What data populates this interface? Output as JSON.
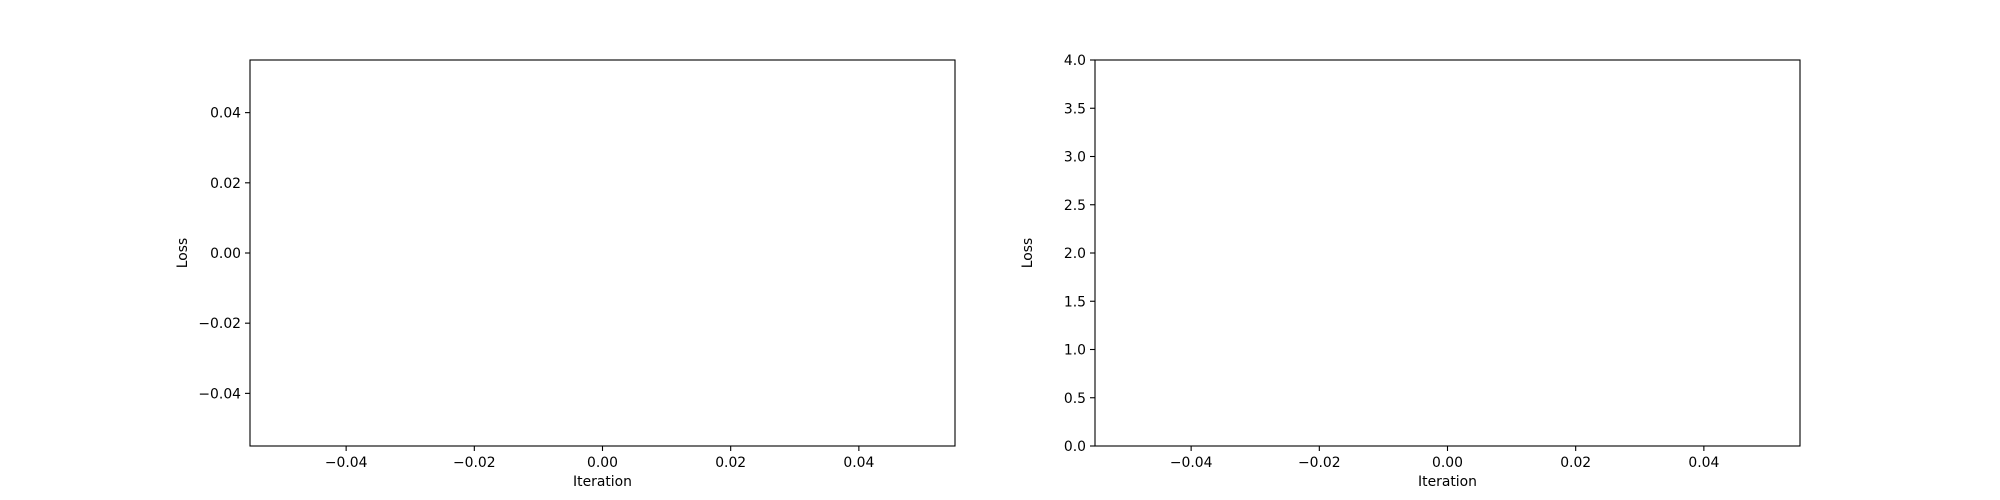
{
  "chart_data": [
    {
      "type": "line",
      "title": "",
      "xlabel": "Iteration",
      "ylabel": "Loss",
      "xlim": [
        -0.055,
        0.055
      ],
      "ylim": [
        -0.055,
        0.055
      ],
      "xticks": [
        -0.04,
        -0.02,
        0.0,
        0.02,
        0.04
      ],
      "xtick_labels": [
        "−0.04",
        "−0.02",
        "0.00",
        "0.02",
        "0.04"
      ],
      "yticks": [
        -0.04,
        -0.02,
        0.0,
        0.02,
        0.04
      ],
      "ytick_labels": [
        "−0.04",
        "−0.02",
        "0.00",
        "0.02",
        "0.04"
      ],
      "grid": false,
      "series": []
    },
    {
      "type": "line",
      "title": "",
      "xlabel": "Iteration",
      "ylabel": "Loss",
      "xlim": [
        -0.055,
        0.055
      ],
      "ylim": [
        0.0,
        4.0
      ],
      "xticks": [
        -0.04,
        -0.02,
        0.0,
        0.02,
        0.04
      ],
      "xtick_labels": [
        "−0.04",
        "−0.02",
        "0.00",
        "0.02",
        "0.04"
      ],
      "yticks": [
        0.0,
        0.5,
        1.0,
        1.5,
        2.0,
        2.5,
        3.0,
        3.5,
        4.0
      ],
      "ytick_labels": [
        "0.0",
        "0.5",
        "1.0",
        "1.5",
        "2.0",
        "2.5",
        "3.0",
        "3.5",
        "4.0"
      ],
      "grid": false,
      "series": []
    }
  ]
}
